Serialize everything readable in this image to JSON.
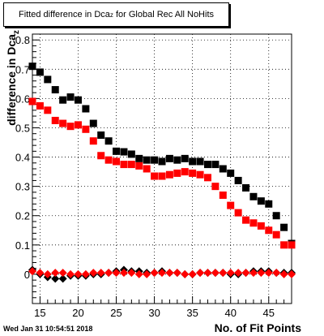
{
  "chart_data": {
    "type": "scatter",
    "title_main": "Fitted difference in Dca",
    "title_sub": "z",
    "title_rest": " for Global Rec All NoHits",
    "xlabel": "No. of Fit Points",
    "ylabel_main": "difference in Dca",
    "ylabel_sub": "z",
    "timestamp": "Wed Jan 31 10:54:51 2018",
    "xlim": [
      14,
      48
    ],
    "ylim": [
      -0.1,
      0.82
    ],
    "xticks": [
      15,
      20,
      25,
      30,
      35,
      40,
      45
    ],
    "yticks": [
      0,
      0.1,
      0.2,
      0.3,
      0.4,
      0.5,
      0.6,
      0.7,
      0.8
    ],
    "ytick_labels": [
      "0",
      "0.1",
      "0.2",
      "0.3",
      "0.4",
      "0.5",
      "0.6",
      "0.7",
      "0.8"
    ],
    "grid": true,
    "x": [
      14,
      15,
      16,
      17,
      18,
      19,
      20,
      21,
      22,
      23,
      24,
      25,
      26,
      27,
      28,
      29,
      30,
      31,
      32,
      33,
      34,
      35,
      36,
      37,
      38,
      39,
      40,
      41,
      42,
      43,
      44,
      45,
      46,
      47,
      48
    ],
    "series": [
      {
        "marker": "square",
        "color": "#000000",
        "values": [
          0.71,
          0.69,
          0.665,
          0.63,
          0.595,
          0.605,
          0.595,
          0.565,
          0.515,
          0.475,
          0.455,
          0.42,
          0.418,
          0.41,
          0.395,
          0.39,
          0.39,
          0.385,
          0.395,
          0.39,
          0.395,
          0.385,
          0.385,
          0.375,
          0.375,
          0.36,
          0.345,
          0.32,
          0.295,
          0.265,
          0.25,
          0.24,
          0.2,
          0.16,
          0.105
        ]
      },
      {
        "marker": "square",
        "color": "#ff0000",
        "values": [
          0.59,
          0.575,
          0.56,
          0.525,
          0.515,
          0.505,
          0.51,
          0.495,
          0.455,
          0.405,
          0.39,
          0.385,
          0.375,
          0.375,
          0.37,
          0.36,
          0.335,
          0.335,
          0.34,
          0.345,
          0.35,
          0.345,
          0.34,
          0.33,
          0.3,
          0.27,
          0.235,
          0.21,
          0.185,
          0.175,
          0.165,
          0.15,
          0.135,
          0.1,
          0.1
        ]
      },
      {
        "marker": "diamond",
        "color": "#000000",
        "values": [
          0.015,
          0.0,
          -0.01,
          -0.015,
          -0.015,
          -0.005,
          -0.005,
          -0.005,
          0.0,
          0.0,
          0.005,
          0.01,
          0.015,
          0.01,
          0.01,
          0.005,
          0.005,
          0.01,
          0.005,
          0.005,
          0.0,
          0.0,
          0.005,
          0.005,
          0.005,
          0.005,
          0.0,
          0.0,
          0.005,
          0.01,
          0.01,
          0.01,
          0.005,
          0.005,
          0.005
        ]
      },
      {
        "marker": "diamond",
        "color": "#ff0000",
        "values": [
          0.01,
          0.005,
          0.0,
          0.005,
          0.005,
          0.0,
          0.0,
          0.0,
          0.005,
          0.005,
          0.005,
          0.005,
          0.005,
          0.005,
          0.0,
          0.0,
          0.005,
          0.005,
          0.005,
          0.005,
          0.0,
          0.0,
          0.005,
          0.005,
          0.005,
          0.005,
          0.005,
          0.005,
          0.005,
          0.005,
          0.005,
          0.005,
          0.005,
          0.0,
          0.0
        ]
      }
    ]
  }
}
